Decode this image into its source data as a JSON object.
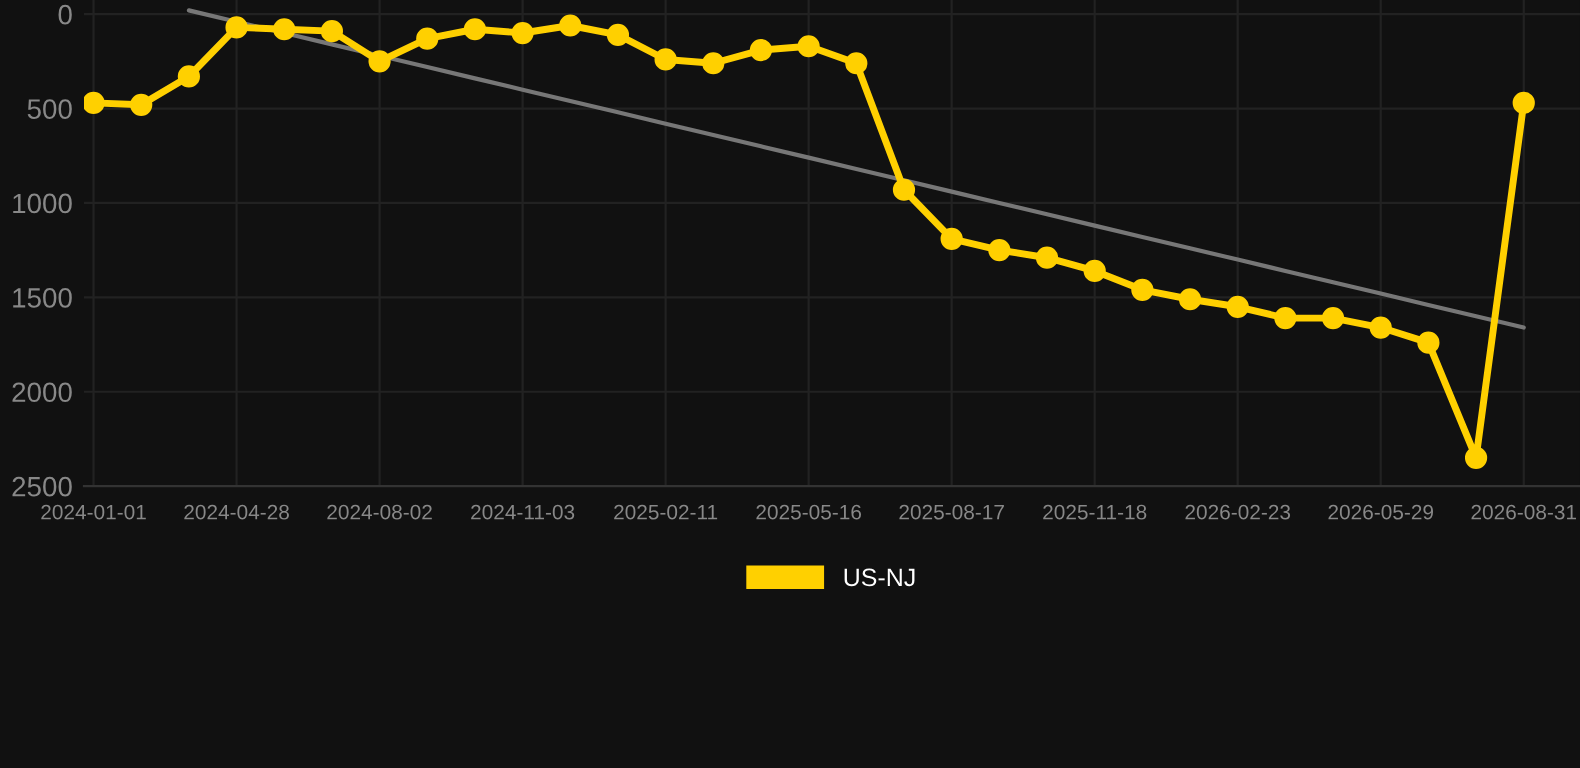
{
  "chart_data": {
    "type": "line",
    "categories": [
      "2024-01-01",
      null,
      null,
      "2024-04-28",
      null,
      null,
      "2024-08-02",
      null,
      null,
      "2024-11-03",
      null,
      null,
      "2025-02-11",
      null,
      null,
      "2025-05-16",
      null,
      null,
      "2025-08-17",
      null,
      null,
      "2025-11-18",
      null,
      null,
      "2026-02-23",
      null,
      null,
      "2026-05-29",
      null,
      null,
      "2026-08-31"
    ],
    "series": [
      {
        "name": "US-NJ",
        "color": "#ffd000",
        "marker": "circle",
        "values": [
          470,
          480,
          330,
          70,
          80,
          90,
          250,
          130,
          80,
          100,
          60,
          110,
          240,
          260,
          190,
          170,
          260,
          930,
          1190,
          1250,
          1290,
          1360,
          1460,
          1510,
          1550,
          1610,
          1610,
          1660,
          1740,
          2350,
          470
        ]
      },
      {
        "color": "#777777",
        "marker": "none",
        "values": [
          null,
          null,
          -20,
          40,
          100,
          160,
          220,
          280,
          340,
          400,
          460,
          520,
          580,
          640,
          700,
          760,
          820,
          880,
          940,
          1000,
          1060,
          1120,
          1180,
          1240,
          1300,
          1360,
          1420,
          1480,
          1540,
          1600,
          1660
        ]
      }
    ],
    "ylim": [
      2500,
      -75
    ],
    "yticks": [
      0,
      500,
      1000,
      1500,
      2000,
      2500
    ],
    "grid": true,
    "legend": "bottom"
  }
}
